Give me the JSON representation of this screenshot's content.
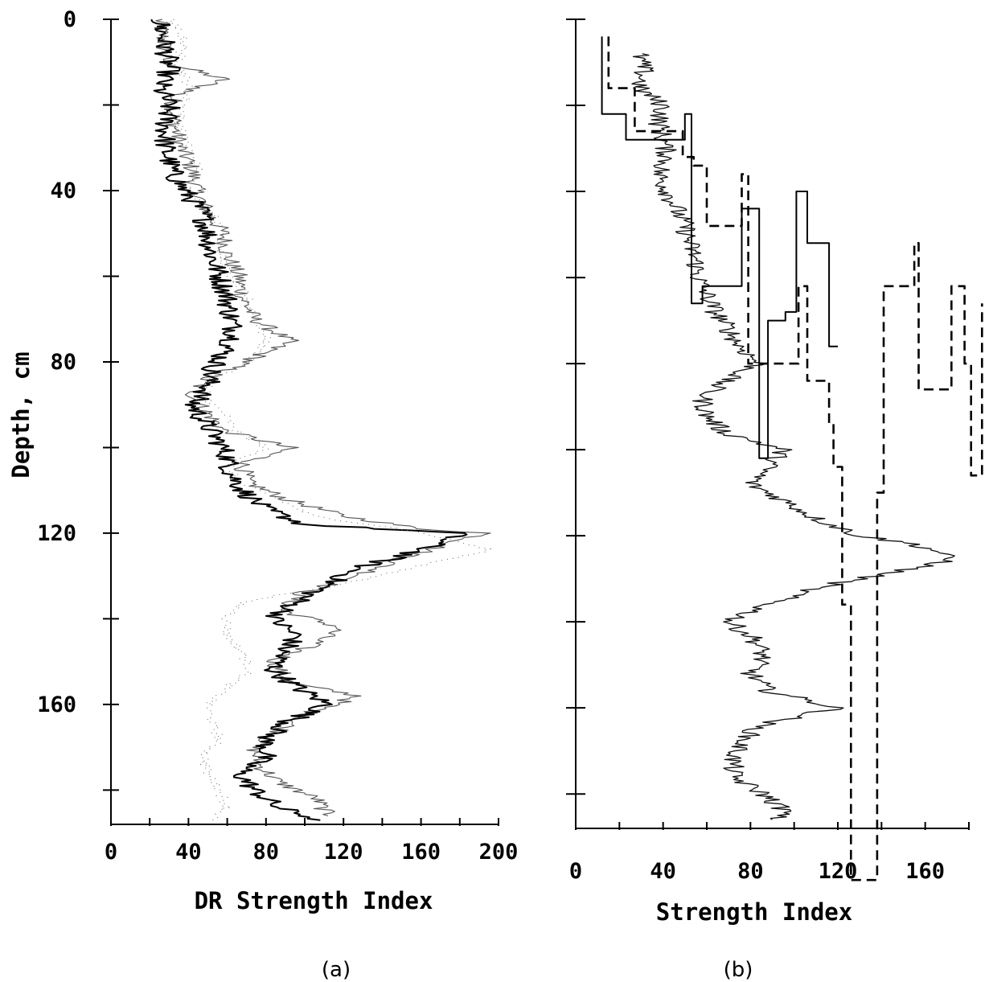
{
  "chart_data": [
    {
      "type": "line",
      "panel_label": "(a)",
      "xlabel": "DR Strength Index",
      "ylabel": "Depth, cm",
      "xlim": [
        0,
        200
      ],
      "ylim": [
        0,
        188
      ],
      "y_inverted": true,
      "x_ticks": [
        "0",
        "40",
        "80",
        "120",
        "160",
        "200"
      ],
      "x_tick_values": [
        0,
        40,
        80,
        120,
        160,
        200
      ],
      "y_ticks": [
        "0",
        "40",
        "80",
        "120",
        "160"
      ],
      "y_tick_values": [
        0,
        40,
        80,
        120,
        160
      ],
      "grid": false,
      "series": [
        {
          "style": "solid-thin",
          "points": [
            [
              0,
              25
            ],
            [
              5,
              27
            ],
            [
              10,
              28
            ],
            [
              14,
              58
            ],
            [
              18,
              32
            ],
            [
              25,
              33
            ],
            [
              30,
              36
            ],
            [
              35,
              42
            ],
            [
              40,
              44
            ],
            [
              45,
              50
            ],
            [
              50,
              58
            ],
            [
              55,
              60
            ],
            [
              60,
              66
            ],
            [
              65,
              68
            ],
            [
              70,
              74
            ],
            [
              75,
              92
            ],
            [
              80,
              70
            ],
            [
              84,
              48
            ],
            [
              88,
              42
            ],
            [
              92,
              50
            ],
            [
              96,
              58
            ],
            [
              100,
              92
            ],
            [
              104,
              68
            ],
            [
              108,
              70
            ],
            [
              112,
              90
            ],
            [
              116,
              120
            ],
            [
              119,
              160
            ],
            [
              120,
              195
            ],
            [
              122,
              178
            ],
            [
              126,
              150
            ],
            [
              130,
              128
            ],
            [
              134,
              98
            ],
            [
              138,
              88
            ],
            [
              142,
              118
            ],
            [
              146,
              104
            ],
            [
              150,
              84
            ],
            [
              155,
              92
            ],
            [
              158,
              128
            ],
            [
              162,
              102
            ],
            [
              166,
              88
            ],
            [
              170,
              74
            ],
            [
              174,
              76
            ],
            [
              178,
              86
            ],
            [
              182,
              106
            ],
            [
              186,
              112
            ]
          ]
        },
        {
          "style": "solid-thick",
          "points": [
            [
              0,
              25
            ],
            [
              6,
              28
            ],
            [
              12,
              30
            ],
            [
              16,
              25
            ],
            [
              20,
              30
            ],
            [
              25,
              28
            ],
            [
              30,
              28
            ],
            [
              36,
              32
            ],
            [
              40,
              38
            ],
            [
              45,
              47
            ],
            [
              50,
              50
            ],
            [
              55,
              52
            ],
            [
              60,
              56
            ],
            [
              65,
              60
            ],
            [
              70,
              62
            ],
            [
              74,
              64
            ],
            [
              78,
              58
            ],
            [
              82,
              52
            ],
            [
              86,
              50
            ],
            [
              90,
              42
            ],
            [
              94,
              48
            ],
            [
              98,
              55
            ],
            [
              102,
              60
            ],
            [
              106,
              62
            ],
            [
              110,
              68
            ],
            [
              114,
              78
            ],
            [
              118,
              100
            ],
            [
              120,
              180
            ],
            [
              124,
              160
            ],
            [
              128,
              128
            ],
            [
              132,
              112
            ],
            [
              136,
              96
            ],
            [
              140,
              84
            ],
            [
              144,
              96
            ],
            [
              148,
              88
            ],
            [
              152,
              84
            ],
            [
              156,
              96
            ],
            [
              160,
              112
            ],
            [
              164,
              92
            ],
            [
              168,
              80
            ],
            [
              172,
              80
            ],
            [
              176,
              66
            ],
            [
              180,
              74
            ],
            [
              184,
              86
            ],
            [
              187,
              108
            ]
          ]
        },
        {
          "style": "dotted",
          "points": [
            [
              0,
              30
            ],
            [
              5,
              38
            ],
            [
              10,
              35
            ],
            [
              15,
              40
            ],
            [
              20,
              38
            ],
            [
              25,
              35
            ],
            [
              30,
              40
            ],
            [
              35,
              45
            ],
            [
              40,
              40
            ],
            [
              45,
              52
            ],
            [
              50,
              58
            ],
            [
              55,
              56
            ],
            [
              60,
              62
            ],
            [
              65,
              70
            ],
            [
              70,
              75
            ],
            [
              75,
              80
            ],
            [
              80,
              72
            ],
            [
              84,
              52
            ],
            [
              88,
              48
            ],
            [
              92,
              58
            ],
            [
              96,
              64
            ],
            [
              100,
              80
            ],
            [
              104,
              62
            ],
            [
              108,
              64
            ],
            [
              112,
              86
            ],
            [
              116,
              104
            ],
            [
              119,
              150
            ],
            [
              121,
              170
            ],
            [
              124,
              196
            ],
            [
              128,
              155
            ],
            [
              132,
              120
            ],
            [
              136,
              68
            ],
            [
              140,
              60
            ],
            [
              144,
              60
            ],
            [
              148,
              68
            ],
            [
              152,
              72
            ],
            [
              156,
              60
            ],
            [
              160,
              50
            ],
            [
              164,
              52
            ],
            [
              168,
              56
            ],
            [
              172,
              48
            ],
            [
              176,
              50
            ],
            [
              180,
              56
            ],
            [
              184,
              60
            ],
            [
              187,
              52
            ]
          ]
        }
      ]
    },
    {
      "type": "line",
      "panel_label": "(b)",
      "xlabel": "Strength Index",
      "ylabel": "",
      "xlim": [
        0,
        180
      ],
      "ylim": [
        0,
        188
      ],
      "y_inverted": true,
      "x_ticks": [
        "0",
        "40",
        "80",
        "120",
        "160"
      ],
      "x_tick_values": [
        0,
        40,
        80,
        120,
        160
      ],
      "grid": false,
      "series": [
        {
          "style": "solid-thin-profile",
          "points": [
            [
              8,
              29
            ],
            [
              12,
              31
            ],
            [
              16,
              29
            ],
            [
              20,
              40
            ],
            [
              24,
              38
            ],
            [
              28,
              40
            ],
            [
              32,
              42
            ],
            [
              36,
              38
            ],
            [
              40,
              42
            ],
            [
              44,
              46
            ],
            [
              48,
              50
            ],
            [
              52,
              52
            ],
            [
              56,
              55
            ],
            [
              60,
              56
            ],
            [
              64,
              60
            ],
            [
              68,
              64
            ],
            [
              72,
              70
            ],
            [
              76,
              75
            ],
            [
              80,
              84
            ],
            [
              84,
              68
            ],
            [
              88,
              58
            ],
            [
              92,
              60
            ],
            [
              96,
              68
            ],
            [
              100,
              95
            ],
            [
              104,
              88
            ],
            [
              108,
              80
            ],
            [
              112,
              96
            ],
            [
              116,
              110
            ],
            [
              120,
              130
            ],
            [
              122,
              155
            ],
            [
              124,
              168
            ],
            [
              126,
              170
            ],
            [
              128,
              150
            ],
            [
              132,
              110
            ],
            [
              136,
              88
            ],
            [
              140,
              70
            ],
            [
              144,
              82
            ],
            [
              148,
              86
            ],
            [
              152,
              80
            ],
            [
              156,
              88
            ],
            [
              160,
              120
            ],
            [
              164,
              84
            ],
            [
              168,
              76
            ],
            [
              172,
              72
            ],
            [
              176,
              72
            ],
            [
              180,
              86
            ],
            [
              184,
              96
            ],
            [
              186,
              90
            ]
          ]
        },
        {
          "style": "solid-step",
          "points": [
            [
              4,
              12
            ],
            [
              22,
              12
            ],
            [
              22,
              23
            ],
            [
              28,
              23
            ],
            [
              28,
              50
            ],
            [
              22,
              50
            ],
            [
              22,
              53
            ],
            [
              66,
              53
            ],
            [
              66,
              58
            ],
            [
              62,
              58
            ],
            [
              62,
              60
            ],
            [
              62,
              76
            ],
            [
              44,
              76
            ],
            [
              44,
              81
            ],
            [
              44,
              84
            ],
            [
              102,
              84
            ],
            [
              102,
              88
            ],
            [
              70,
              88
            ],
            [
              70,
              96
            ],
            [
              68,
              96
            ],
            [
              68,
              101
            ],
            [
              40,
              101
            ],
            [
              40,
              106
            ],
            [
              52,
              106
            ],
            [
              52,
              116
            ],
            [
              76,
              116
            ],
            [
              76,
              120
            ]
          ]
        },
        {
          "style": "dashed-step",
          "points": [
            [
              4,
              15
            ],
            [
              16,
              15
            ],
            [
              16,
              27
            ],
            [
              26,
              27
            ],
            [
              26,
              49
            ],
            [
              32,
              49
            ],
            [
              32,
              54
            ],
            [
              34,
              54
            ],
            [
              34,
              60
            ],
            [
              48,
              60
            ],
            [
              48,
              76
            ],
            [
              36,
              76
            ],
            [
              36,
              79
            ],
            [
              80,
              79
            ],
            [
              80,
              102
            ],
            [
              62,
              102
            ],
            [
              62,
              106
            ],
            [
              84,
              106
            ],
            [
              84,
              116
            ],
            [
              94,
              116
            ],
            [
              94,
              118
            ],
            [
              104,
              118
            ],
            [
              104,
              122
            ],
            [
              136,
              122
            ],
            [
              136,
              126
            ],
            [
              200,
              126
            ],
            [
              200,
              138
            ],
            [
              110,
              138
            ],
            [
              110,
              141
            ],
            [
              62,
              141
            ],
            [
              62,
              155
            ],
            [
              52,
              155
            ],
            [
              52,
              157
            ],
            [
              86,
              157
            ],
            [
              86,
              172
            ],
            [
              62,
              172
            ],
            [
              62,
              178
            ],
            [
              80,
              178
            ],
            [
              80,
              181
            ],
            [
              106,
              181
            ],
            [
              106,
              186
            ],
            [
              66,
              186
            ]
          ]
        }
      ]
    }
  ]
}
